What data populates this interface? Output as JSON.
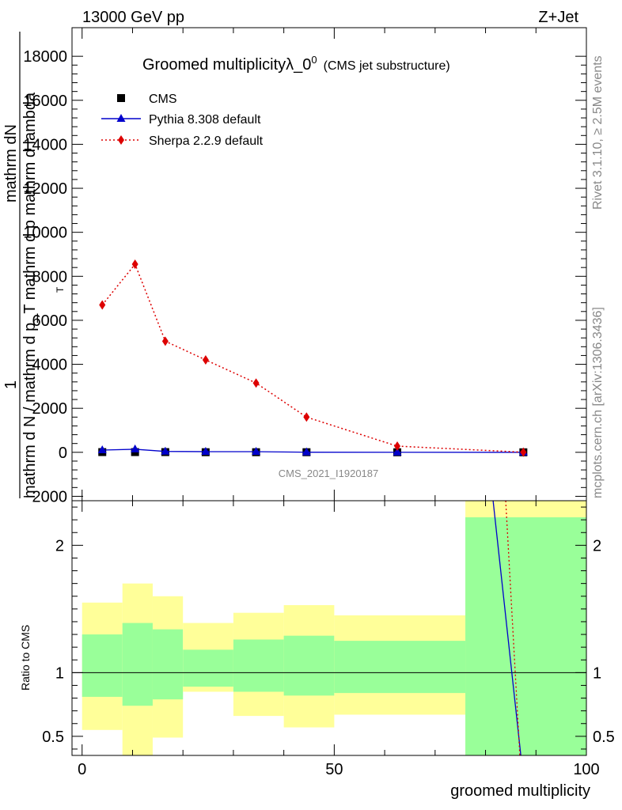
{
  "header": {
    "left": "13000 GeV pp",
    "right": "Z+Jet"
  },
  "side_labels": {
    "rivet": "Rivet 3.1.10, ≥ 2.5M events",
    "mcplots": "mcplots.cern.ch [arXiv:1306.3436]"
  },
  "chart_data": [
    {
      "type": "line",
      "title": "Groomed multiplicityλ_0",
      "title_sup": "0",
      "subtitle": "(CMS jet substructure)",
      "watermark": "CMS_2021_I1920187",
      "ylabel_lines": [
        "1",
        "mathrm d N / mathrm d p",
        "mathrm d p",
        "mathrm dN"
      ],
      "ylabel_full": "1 / mathrm dN  mathrm d N / mathrm d p_T mathrm d p mathrm d lambda",
      "ylabel_main": "mathrm d N / mathrm d p_T mathrm d p mathrm d lambda",
      "ylabel_sub": "T",
      "ylabel_left1": "1",
      "ylabel_left2": "mathrm dN",
      "xlim": [
        -2,
        100
      ],
      "ylim": [
        -2200,
        19300
      ],
      "yticks": [
        -2000,
        0,
        2000,
        4000,
        6000,
        8000,
        10000,
        12000,
        14000,
        16000,
        18000
      ],
      "ytick_labels": [
        "−2000",
        "0",
        "2000",
        "4000",
        "6000",
        "8000",
        "10000",
        "12000",
        "14000",
        "16000",
        "18000"
      ],
      "legend_position": "top-left",
      "series": [
        {
          "name": "CMS",
          "style": "markers",
          "marker": "square",
          "color": "#000000",
          "x": [
            4,
            10.5,
            16.5,
            24.5,
            34.5,
            44.5,
            62.5,
            87.5
          ],
          "y": [
            10,
            10,
            10,
            5,
            5,
            5,
            2,
            1
          ]
        },
        {
          "name": "Pythia 8.308 default",
          "style": "solid",
          "marker": "triangle",
          "color": "#0000cc",
          "x": [
            4,
            10.5,
            16.5,
            24.5,
            34.5,
            44.5,
            62.5,
            87.5
          ],
          "y": [
            100,
            140,
            40,
            30,
            30,
            5,
            2,
            0
          ]
        },
        {
          "name": "Sherpa 2.2.9 default",
          "style": "dotted",
          "marker": "diamond",
          "color": "#dd0000",
          "x": [
            4,
            10.5,
            16.5,
            24.5,
            34.5,
            44.5,
            62.5,
            87.5
          ],
          "y": [
            6700,
            8550,
            5050,
            4200,
            3150,
            1600,
            280,
            5
          ]
        }
      ]
    },
    {
      "type": "area",
      "ylabel": "Ratio to CMS",
      "xlabel": "groomed multiplicity",
      "xlim": [
        -2,
        100
      ],
      "ylim": [
        0.35,
        2.35
      ],
      "yticks": [
        0.5,
        1,
        2
      ],
      "ytick_labels": [
        "0.5",
        "1",
        "2"
      ],
      "xticks": [
        0,
        50,
        100
      ],
      "xtick_labels": [
        "0",
        "50",
        "100"
      ],
      "bins": [
        {
          "lo": 0,
          "hi": 8,
          "yellow": [
            0.55,
            1.55
          ],
          "green": [
            0.81,
            1.3
          ]
        },
        {
          "lo": 8,
          "hi": 14,
          "yellow": [
            0.35,
            1.7
          ],
          "green": [
            0.74,
            1.39
          ]
        },
        {
          "lo": 14,
          "hi": 20,
          "yellow": [
            0.49,
            1.6
          ],
          "green": [
            0.79,
            1.34
          ]
        },
        {
          "lo": 20,
          "hi": 30,
          "yellow": [
            0.85,
            1.39
          ],
          "green": [
            0.89,
            1.18
          ]
        },
        {
          "lo": 30,
          "hi": 40,
          "yellow": [
            0.66,
            1.47
          ],
          "green": [
            0.85,
            1.26
          ]
        },
        {
          "lo": 40,
          "hi": 50,
          "yellow": [
            0.57,
            1.53
          ],
          "green": [
            0.82,
            1.29
          ]
        },
        {
          "lo": 50,
          "hi": 76,
          "yellow": [
            0.67,
            1.45
          ],
          "green": [
            0.84,
            1.25
          ]
        },
        {
          "lo": 76,
          "hi": 100,
          "yellow": [
            0.35,
            2.35
          ],
          "green": [
            0.35,
            2.22
          ]
        }
      ],
      "reference": 1,
      "ratio_lines": [
        {
          "name": "Pythia 8.308 default",
          "color": "#0000cc",
          "style": "solid",
          "x": [
            81.5,
            87
          ],
          "y": [
            2.35,
            0.35
          ]
        },
        {
          "name": "Sherpa 2.2.9 default",
          "color": "#dd0000",
          "style": "dotted",
          "x": [
            84,
            86.8
          ],
          "y": [
            2.35,
            0.35
          ]
        }
      ]
    }
  ]
}
